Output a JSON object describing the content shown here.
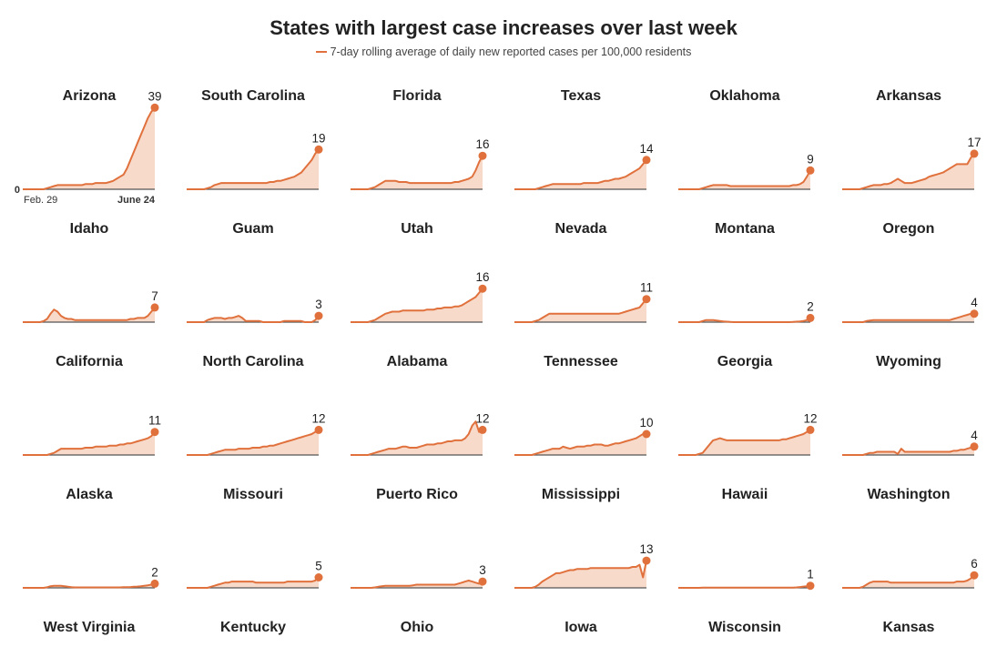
{
  "title": "States with largest case increases over last week",
  "legend": "7-day rolling average of daily new reported cases per 100,000 residents",
  "colors": {
    "line": "#e0713d",
    "bars": "#f5cdb8",
    "baseline": "#555555"
  },
  "chart_data": {
    "type": "line",
    "title": "States with largest case increases over last week",
    "series_label": "7-day rolling average of daily new reported cases per 100,000 residents",
    "x_start": "Feb. 29",
    "x_end": "June 24",
    "y_zero_label": "0",
    "ylim": [
      0,
      40
    ],
    "panels": [
      {
        "name": "Arizona",
        "end_value": 39,
        "values": [
          0,
          0,
          0,
          0,
          0,
          0,
          0,
          0.5,
          1,
          1.5,
          2,
          2,
          2,
          2,
          2,
          2,
          2,
          2,
          2.5,
          2.5,
          2.5,
          3,
          3,
          3,
          3,
          3.5,
          4,
          5,
          6,
          7,
          10,
          14,
          18,
          22,
          26,
          30,
          34,
          37,
          39
        ]
      },
      {
        "name": "South Carolina",
        "end_value": 19,
        "values": [
          0,
          0,
          0,
          0,
          0,
          0,
          0.5,
          1,
          2,
          2.5,
          3,
          3,
          3,
          3,
          3,
          3,
          3,
          3,
          3,
          3,
          3,
          3,
          3,
          3,
          3.5,
          3.5,
          4,
          4,
          4.5,
          5,
          5.5,
          6,
          7,
          8,
          10,
          12,
          14,
          17,
          19
        ]
      },
      {
        "name": "Florida",
        "end_value": 16,
        "values": [
          0,
          0,
          0,
          0,
          0,
          0,
          0.5,
          1,
          2,
          3,
          4,
          4,
          4,
          4,
          3.5,
          3.5,
          3.5,
          3,
          3,
          3,
          3,
          3,
          3,
          3,
          3,
          3,
          3,
          3,
          3,
          3,
          3.5,
          3.5,
          4,
          4.5,
          5,
          6,
          9,
          13,
          16
        ]
      },
      {
        "name": "Texas",
        "end_value": 14,
        "values": [
          0,
          0,
          0,
          0,
          0,
          0,
          0,
          0.5,
          1,
          1.5,
          2,
          2.5,
          2.5,
          2.5,
          2.5,
          2.5,
          2.5,
          2.5,
          2.5,
          2.5,
          3,
          3,
          3,
          3,
          3,
          3.5,
          4,
          4,
          4.5,
          5,
          5,
          5.5,
          6,
          7,
          8,
          9,
          10,
          12,
          14
        ]
      },
      {
        "name": "Oklahoma",
        "end_value": 9,
        "values": [
          0,
          0,
          0,
          0,
          0,
          0,
          0,
          0.5,
          1,
          1.5,
          2,
          2,
          2,
          2,
          2,
          1.5,
          1.5,
          1.5,
          1.5,
          1.5,
          1.5,
          1.5,
          1.5,
          1.5,
          1.5,
          1.5,
          1.5,
          1.5,
          1.5,
          1.5,
          1.5,
          1.5,
          1.5,
          2,
          2,
          2.5,
          3.5,
          6,
          9
        ]
      },
      {
        "name": "Arkansas",
        "end_value": 17,
        "values": [
          0,
          0,
          0,
          0,
          0,
          0,
          0.5,
          1,
          1.5,
          2,
          2,
          2,
          2.5,
          2.5,
          3,
          4,
          5,
          4,
          3,
          3,
          3,
          3.5,
          4,
          4.5,
          5,
          6,
          6.5,
          7,
          7.5,
          8,
          9,
          10,
          11,
          12,
          12,
          12,
          12,
          15,
          17
        ]
      },
      {
        "name": "Idaho",
        "end_value": 7,
        "values": [
          0,
          0,
          0,
          0,
          0,
          0,
          0.5,
          1.5,
          4,
          6,
          5,
          3,
          2,
          1.5,
          1.5,
          1,
          1,
          1,
          1,
          1,
          1,
          1,
          1,
          1,
          1,
          1,
          1,
          1,
          1,
          1,
          1,
          1.5,
          1.5,
          2,
          2,
          2,
          3,
          5,
          7
        ]
      },
      {
        "name": "Guam",
        "end_value": 3,
        "values": [
          0,
          0,
          0,
          0,
          0,
          0,
          1,
          1.5,
          2,
          2,
          2,
          1.5,
          2,
          2,
          2.5,
          3,
          2,
          0.5,
          0.5,
          0.5,
          0.5,
          0.5,
          0,
          0,
          0,
          0,
          0,
          0,
          0.5,
          0.5,
          0.5,
          0.5,
          0.5,
          0.5,
          0,
          0,
          0,
          1,
          3
        ]
      },
      {
        "name": "Utah",
        "end_value": 16,
        "values": [
          0,
          0,
          0,
          0,
          0,
          0,
          0.5,
          1,
          2,
          3,
          4,
          4.5,
          5,
          5,
          5,
          5.5,
          5.5,
          5.5,
          5.5,
          5.5,
          5.5,
          5.5,
          6,
          6,
          6,
          6.5,
          6.5,
          7,
          7,
          7,
          7.5,
          7.5,
          8,
          9,
          10,
          11,
          12,
          14,
          16
        ]
      },
      {
        "name": "Nevada",
        "end_value": 11,
        "values": [
          0,
          0,
          0,
          0,
          0,
          0,
          0.5,
          1,
          2,
          3,
          4,
          4,
          4,
          4,
          4,
          4,
          4,
          4,
          4,
          4,
          4,
          4,
          4,
          4,
          4,
          4,
          4,
          4,
          4,
          4,
          4,
          4.5,
          5,
          5.5,
          6,
          6.5,
          7,
          9,
          11
        ]
      },
      {
        "name": "Montana",
        "end_value": 2,
        "values": [
          0,
          0,
          0,
          0,
          0,
          0,
          0,
          0.5,
          1,
          1,
          1,
          0.8,
          0.5,
          0.3,
          0.2,
          0.1,
          0,
          0,
          0,
          0,
          0,
          0,
          0,
          0,
          0,
          0,
          0,
          0,
          0,
          0,
          0,
          0,
          0,
          0.1,
          0.2,
          0.3,
          0.5,
          1,
          2
        ]
      },
      {
        "name": "Oregon",
        "end_value": 4,
        "values": [
          0,
          0,
          0,
          0,
          0,
          0,
          0,
          0.5,
          0.8,
          1,
          1,
          1,
          1,
          1,
          1,
          1,
          1,
          1,
          1,
          1,
          1,
          1,
          1,
          1,
          1,
          1,
          1,
          1,
          1,
          1,
          1,
          1,
          1.5,
          2,
          2.5,
          3,
          3.5,
          4,
          4
        ]
      },
      {
        "name": "California",
        "end_value": 11,
        "values": [
          0,
          0,
          0,
          0,
          0,
          0,
          0,
          0,
          0.5,
          1,
          2,
          3,
          3,
          3,
          3,
          3,
          3,
          3,
          3.5,
          3.5,
          3.5,
          4,
          4,
          4,
          4,
          4.5,
          4.5,
          4.5,
          5,
          5,
          5.5,
          5.5,
          6,
          6.5,
          7,
          7.5,
          8,
          9,
          11
        ]
      },
      {
        "name": "North Carolina",
        "end_value": 12,
        "values": [
          0,
          0,
          0,
          0,
          0,
          0,
          0,
          0.5,
          1,
          1.5,
          2,
          2.5,
          2.5,
          2.5,
          2.5,
          3,
          3,
          3,
          3,
          3.5,
          3.5,
          3.5,
          4,
          4,
          4.5,
          4.5,
          5,
          5.5,
          6,
          6.5,
          7,
          7.5,
          8,
          8.5,
          9,
          9.5,
          10,
          11,
          12
        ]
      },
      {
        "name": "Alabama",
        "end_value": 12,
        "values": [
          0,
          0,
          0,
          0,
          0,
          0,
          0.5,
          1,
          1.5,
          2,
          2.5,
          3,
          3,
          3,
          3.5,
          4,
          4,
          3.5,
          3.5,
          3.5,
          4,
          4.5,
          5,
          5,
          5,
          5.5,
          5.5,
          6,
          6.5,
          6.5,
          7,
          7,
          7,
          8,
          10,
          14,
          16,
          11,
          12
        ]
      },
      {
        "name": "Tennessee",
        "end_value": 10,
        "values": [
          0,
          0,
          0,
          0,
          0,
          0,
          0.5,
          1,
          1.5,
          2,
          2.5,
          3,
          3,
          3,
          4,
          3.5,
          3,
          3.5,
          4,
          4,
          4,
          4.5,
          4.5,
          5,
          5,
          5,
          4.5,
          4.5,
          5,
          5.5,
          5.5,
          6,
          6.5,
          7,
          7.5,
          8,
          9,
          10,
          10
        ]
      },
      {
        "name": "Georgia",
        "end_value": 12,
        "values": [
          0,
          0,
          0,
          0,
          0,
          0,
          0.5,
          1,
          3,
          5,
          7,
          7.5,
          8,
          7.5,
          7,
          7,
          7,
          7,
          7,
          7,
          7,
          7,
          7,
          7,
          7,
          7,
          7,
          7,
          7,
          7,
          7.5,
          7.5,
          8,
          8.5,
          9,
          9.5,
          10,
          11,
          12
        ]
      },
      {
        "name": "Wyoming",
        "end_value": 4,
        "values": [
          0,
          0,
          0,
          0,
          0,
          0,
          0,
          0.5,
          1,
          1,
          1.5,
          1.5,
          1.5,
          1.5,
          1.5,
          1.5,
          0.5,
          3,
          1.5,
          1.5,
          1.5,
          1.5,
          1.5,
          1.5,
          1.5,
          1.5,
          1.5,
          1.5,
          1.5,
          1.5,
          1.5,
          1.5,
          2,
          2,
          2.5,
          2.5,
          3,
          3.5,
          4
        ]
      },
      {
        "name": "Alaska",
        "end_value": 2,
        "values": [
          0,
          0,
          0,
          0,
          0,
          0,
          0,
          0.3,
          0.8,
          1,
          1,
          1,
          0.8,
          0.5,
          0.3,
          0.2,
          0.2,
          0.2,
          0.2,
          0.2,
          0.2,
          0.2,
          0.2,
          0.2,
          0.2,
          0.2,
          0.2,
          0.2,
          0.2,
          0.3,
          0.3,
          0.4,
          0.5,
          0.6,
          0.8,
          1,
          1.2,
          1.5,
          2
        ]
      },
      {
        "name": "Missouri",
        "end_value": 5,
        "values": [
          0,
          0,
          0,
          0,
          0,
          0,
          0,
          0.5,
          1,
          1.5,
          2,
          2.5,
          2.5,
          3,
          3,
          3,
          3,
          3,
          3,
          3,
          2.5,
          2.5,
          2.5,
          2.5,
          2.5,
          2.5,
          2.5,
          2.5,
          2.5,
          3,
          3,
          3,
          3,
          3,
          3,
          3,
          3,
          3.5,
          5
        ]
      },
      {
        "name": "Puerto Rico",
        "end_value": 3,
        "values": [
          0,
          0,
          0,
          0,
          0,
          0,
          0,
          0.2,
          0.5,
          0.8,
          1,
          1,
          1,
          1,
          1,
          1,
          1,
          1,
          1.2,
          1.5,
          1.5,
          1.5,
          1.5,
          1.5,
          1.5,
          1.5,
          1.5,
          1.5,
          1.5,
          1.5,
          1.5,
          2,
          2.5,
          3,
          3.5,
          3,
          2.5,
          2,
          3
        ]
      },
      {
        "name": "Mississippi",
        "end_value": 13,
        "values": [
          0,
          0,
          0,
          0,
          0,
          0,
          0.5,
          1.5,
          3,
          4,
          5,
          6,
          7,
          7,
          7.5,
          8,
          8.5,
          8.5,
          9,
          9,
          9,
          9,
          9.5,
          9.5,
          9.5,
          9.5,
          9.5,
          9.5,
          9.5,
          9.5,
          9.5,
          9.5,
          9.5,
          9.5,
          10,
          10,
          11,
          5,
          13
        ]
      },
      {
        "name": "Hawaii",
        "end_value": 1,
        "values": [
          0,
          0,
          0,
          0,
          0,
          0,
          0,
          0.1,
          0.1,
          0.1,
          0.1,
          0.1,
          0.1,
          0.1,
          0.1,
          0.1,
          0.1,
          0.1,
          0.1,
          0.1,
          0.1,
          0.1,
          0.1,
          0.1,
          0.1,
          0.1,
          0.1,
          0.1,
          0.1,
          0.1,
          0.1,
          0.1,
          0.1,
          0.1,
          0.2,
          0.4,
          0.6,
          0.8,
          1
        ]
      },
      {
        "name": "Washington",
        "end_value": 6,
        "values": [
          0,
          0,
          0,
          0,
          0,
          0,
          0.5,
          1.5,
          2.5,
          3,
          3,
          3,
          3,
          3,
          2.5,
          2.5,
          2.5,
          2.5,
          2.5,
          2.5,
          2.5,
          2.5,
          2.5,
          2.5,
          2.5,
          2.5,
          2.5,
          2.5,
          2.5,
          2.5,
          2.5,
          2.5,
          2.5,
          3,
          3,
          3,
          3.5,
          4.5,
          6
        ]
      },
      {
        "name": "West Virginia"
      },
      {
        "name": "Kentucky"
      },
      {
        "name": "Ohio"
      },
      {
        "name": "Iowa"
      },
      {
        "name": "Wisconsin"
      },
      {
        "name": "Kansas"
      }
    ]
  }
}
